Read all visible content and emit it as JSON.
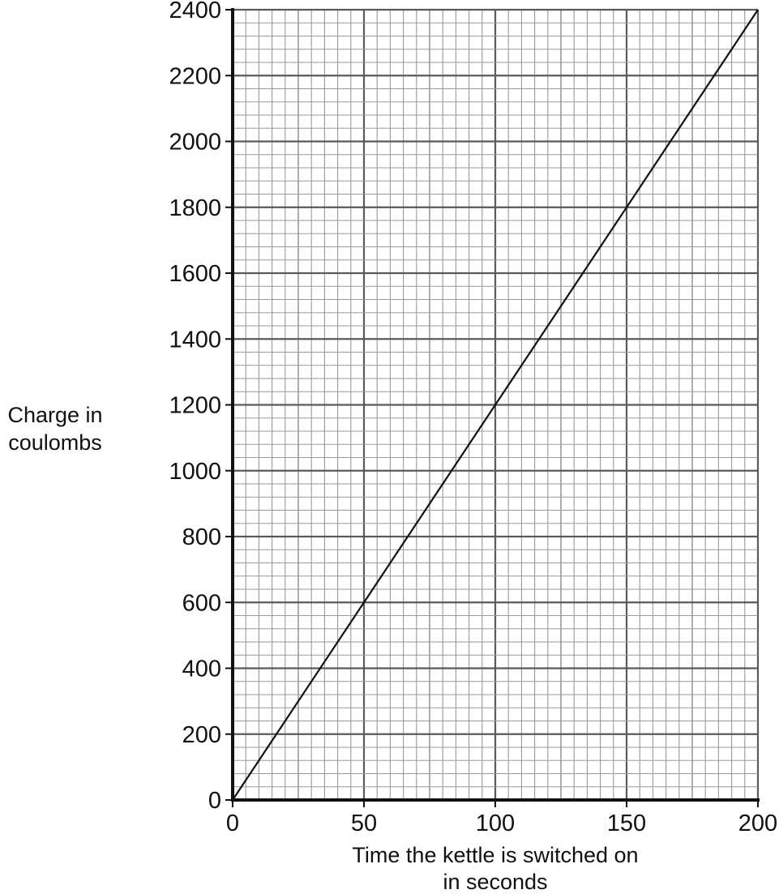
{
  "chart_data": {
    "type": "line",
    "title": "",
    "xlabel": [
      "Time the kettle is switched on",
      "in seconds"
    ],
    "ylabel": [
      "Charge in",
      "coulombs"
    ],
    "xlim": [
      0,
      200
    ],
    "ylim": [
      0,
      2400
    ],
    "xticks": [
      0,
      50,
      100,
      150,
      200
    ],
    "yticks": [
      0,
      200,
      400,
      600,
      800,
      1000,
      1200,
      1400,
      1600,
      1800,
      2000,
      2200,
      2400
    ],
    "grid": true,
    "series": [
      {
        "x": [
          0,
          200
        ],
        "y": [
          0,
          2400
        ]
      }
    ]
  },
  "colors": {
    "line": "#111111",
    "grid_minor": "#9a9a9a",
    "grid_major": "#5a5a5a",
    "axis": "#111111"
  }
}
